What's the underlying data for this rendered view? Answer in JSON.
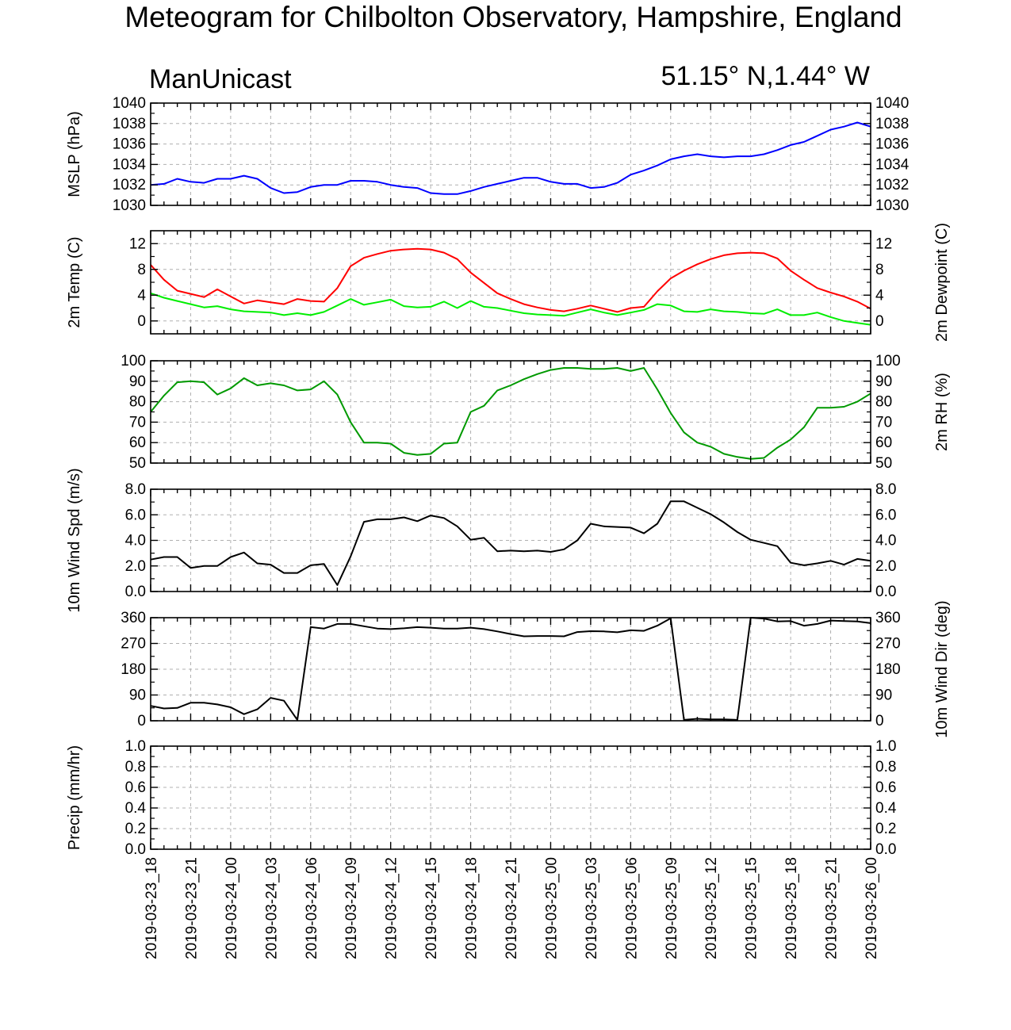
{
  "header": {
    "title": "Meteogram for Chilbolton Observatory, Hampshire, England",
    "model": "ManUnicast",
    "location": "51.15° N,1.44° W"
  },
  "chart_data": {
    "type": "line",
    "x_labels": [
      "2019-03-23_18",
      "2019-03-23_21",
      "2019-03-24_00",
      "2019-03-24_03",
      "2019-03-24_06",
      "2019-03-24_09",
      "2019-03-24_12",
      "2019-03-24_15",
      "2019-03-24_18",
      "2019-03-24_21",
      "2019-03-25_00",
      "2019-03-25_03",
      "2019-03-25_06",
      "2019-03-25_09",
      "2019-03-25_12",
      "2019-03-25_15",
      "2019-03-25_18",
      "2019-03-25_21",
      "2019-03-26_00"
    ],
    "x_hours": [
      0,
      1,
      2,
      3,
      4,
      5,
      6,
      7,
      8,
      9,
      10,
      11,
      12,
      13,
      14,
      15,
      16,
      17,
      18,
      19,
      20,
      21,
      22,
      23,
      24,
      25,
      26,
      27,
      28,
      29,
      30,
      31,
      32,
      33,
      34,
      35,
      36,
      37,
      38,
      39,
      40,
      41,
      42,
      43,
      44,
      45,
      46,
      47,
      48,
      49,
      50,
      51,
      52,
      53,
      54
    ],
    "panels": [
      {
        "id": "mslp",
        "ylabel_left": "MSLP (hPa)",
        "ylabel_right": "",
        "ylim": [
          1030,
          1040
        ],
        "yticks": [
          1030,
          1032,
          1034,
          1036,
          1038,
          1040
        ],
        "tick_decimals": 0,
        "right_tick_labels": true,
        "series": [
          {
            "color": "#0000ff",
            "values": [
              1032.0,
              1032.1,
              1032.6,
              1032.3,
              1032.2,
              1032.6,
              1032.6,
              1032.9,
              1032.6,
              1031.7,
              1031.2,
              1031.3,
              1031.8,
              1032.0,
              1032.0,
              1032.4,
              1032.4,
              1032.3,
              1032.0,
              1031.8,
              1031.7,
              1031.2,
              1031.1,
              1031.1,
              1031.4,
              1031.8,
              1032.1,
              1032.4,
              1032.7,
              1032.7,
              1032.3,
              1032.1,
              1032.1,
              1031.7,
              1031.8,
              1032.2,
              1033.0,
              1033.4,
              1033.9,
              1034.5,
              1034.8,
              1035.0,
              1034.8,
              1034.7,
              1034.8,
              1034.8,
              1035.0,
              1035.4,
              1035.9,
              1036.2,
              1036.8,
              1037.4,
              1037.7,
              1038.1,
              1037.7
            ]
          }
        ]
      },
      {
        "id": "temp",
        "ylabel_left": "2m Temp (C)",
        "ylabel_right": "2m Dewpoint (C)",
        "ylim": [
          -2,
          14
        ],
        "yticks": [
          0,
          4,
          8,
          12
        ],
        "tick_decimals": 0,
        "right_tick_labels": true,
        "series": [
          {
            "color": "#ff0000",
            "values": [
              8.7,
              6.4,
              4.7,
              4.2,
              3.7,
              4.9,
              3.8,
              2.7,
              3.2,
              2.9,
              2.6,
              3.4,
              3.1,
              3.0,
              5.1,
              8.5,
              9.8,
              10.4,
              10.9,
              11.1,
              11.2,
              11.1,
              10.6,
              9.6,
              7.5,
              5.9,
              4.3,
              3.4,
              2.6,
              2.1,
              1.7,
              1.5,
              1.9,
              2.4,
              1.9,
              1.4,
              2.0,
              2.2,
              4.6,
              6.6,
              7.8,
              8.8,
              9.6,
              10.2,
              10.5,
              10.6,
              10.5,
              9.7,
              7.8,
              6.4,
              5.1,
              4.4,
              3.8,
              3.0,
              1.9
            ]
          },
          {
            "color": "#00ee00",
            "values": [
              4.3,
              3.6,
              3.1,
              2.6,
              2.1,
              2.3,
              1.8,
              1.5,
              1.4,
              1.3,
              0.9,
              1.2,
              0.9,
              1.4,
              2.4,
              3.4,
              2.5,
              2.9,
              3.3,
              2.3,
              2.1,
              2.2,
              3.0,
              2.0,
              3.1,
              2.2,
              2.0,
              1.6,
              1.2,
              1.0,
              0.9,
              0.8,
              1.3,
              1.8,
              1.3,
              0.9,
              1.3,
              1.7,
              2.6,
              2.4,
              1.5,
              1.4,
              1.8,
              1.5,
              1.4,
              1.2,
              1.1,
              1.8,
              0.9,
              0.9,
              1.3,
              0.6,
              0.0,
              -0.3,
              -0.6
            ]
          }
        ]
      },
      {
        "id": "rh",
        "ylabel_left": "",
        "ylabel_right": "2m RH (%)",
        "ylim": [
          50,
          100
        ],
        "yticks": [
          50,
          60,
          70,
          80,
          90,
          100
        ],
        "tick_decimals": 0,
        "right_tick_labels": true,
        "series": [
          {
            "color": "#009900",
            "values": [
              75,
              83,
              89.5,
              90,
              89.5,
              83.5,
              86.5,
              91.5,
              88,
              89,
              88,
              85.5,
              86,
              90,
              83.5,
              70,
              60,
              60,
              59.5,
              55,
              54,
              54.5,
              59.5,
              60,
              75,
              78,
              85.5,
              88,
              91,
              93.5,
              95.5,
              96.5,
              96.5,
              96,
              96,
              96.5,
              95,
              96.5,
              86,
              74.5,
              65,
              60,
              58,
              54.5,
              53,
              52,
              52.5,
              57.5,
              61.5,
              67.5,
              77,
              77,
              77.5,
              80,
              84
            ]
          }
        ]
      },
      {
        "id": "wspd",
        "ylabel_left": "10m Wind Spd (m/s)",
        "ylabel_right": "",
        "ylim": [
          0,
          8
        ],
        "yticks": [
          0,
          2,
          4,
          6,
          8
        ],
        "tick_decimals": 1,
        "right_tick_labels": true,
        "series": [
          {
            "color": "#000000",
            "values": [
              2.5,
              2.7,
              2.7,
              1.85,
              2.0,
              2.0,
              2.7,
              3.05,
              2.2,
              2.1,
              1.45,
              1.45,
              2.05,
              2.15,
              0.5,
              2.75,
              5.45,
              5.65,
              5.65,
              5.8,
              5.5,
              5.95,
              5.75,
              5.1,
              4.05,
              4.2,
              3.15,
              3.2,
              3.15,
              3.2,
              3.1,
              3.3,
              4.0,
              5.3,
              5.1,
              5.05,
              5.0,
              4.55,
              5.3,
              7.05,
              7.05,
              6.55,
              6.05,
              5.4,
              4.65,
              4.05,
              3.8,
              3.55,
              2.25,
              2.05,
              2.2,
              2.4,
              2.1,
              2.55,
              2.4
            ]
          }
        ]
      },
      {
        "id": "wdir",
        "ylabel_left": "",
        "ylabel_right": "10m Wind Dir (deg)",
        "ylim": [
          0,
          360
        ],
        "yticks": [
          0,
          90,
          180,
          270,
          360
        ],
        "tick_decimals": 0,
        "right_tick_labels": true,
        "series": [
          {
            "color": "#000000",
            "values": [
              52,
              43,
              45,
              63,
              63,
              57,
              47,
              23,
              40,
              80,
              70,
              3,
              327,
              322,
              338,
              338,
              330,
              322,
              320,
              323,
              327,
              325,
              322,
              322,
              325,
              320,
              312,
              303,
              295,
              296,
              296,
              295,
              310,
              313,
              312,
              309,
              316,
              314,
              332,
              358,
              3,
              7,
              5,
              5,
              3,
              360,
              357,
              347,
              348,
              332,
              338,
              350,
              348,
              347,
              341
            ]
          }
        ]
      },
      {
        "id": "precip",
        "ylabel_left": "Precip (mm/hr)",
        "ylabel_right": "",
        "ylim": [
          0,
          1
        ],
        "yticks": [
          0,
          0.2,
          0.4,
          0.6,
          0.8,
          1.0
        ],
        "tick_decimals": 1,
        "right_tick_labels": true,
        "series": []
      }
    ]
  }
}
